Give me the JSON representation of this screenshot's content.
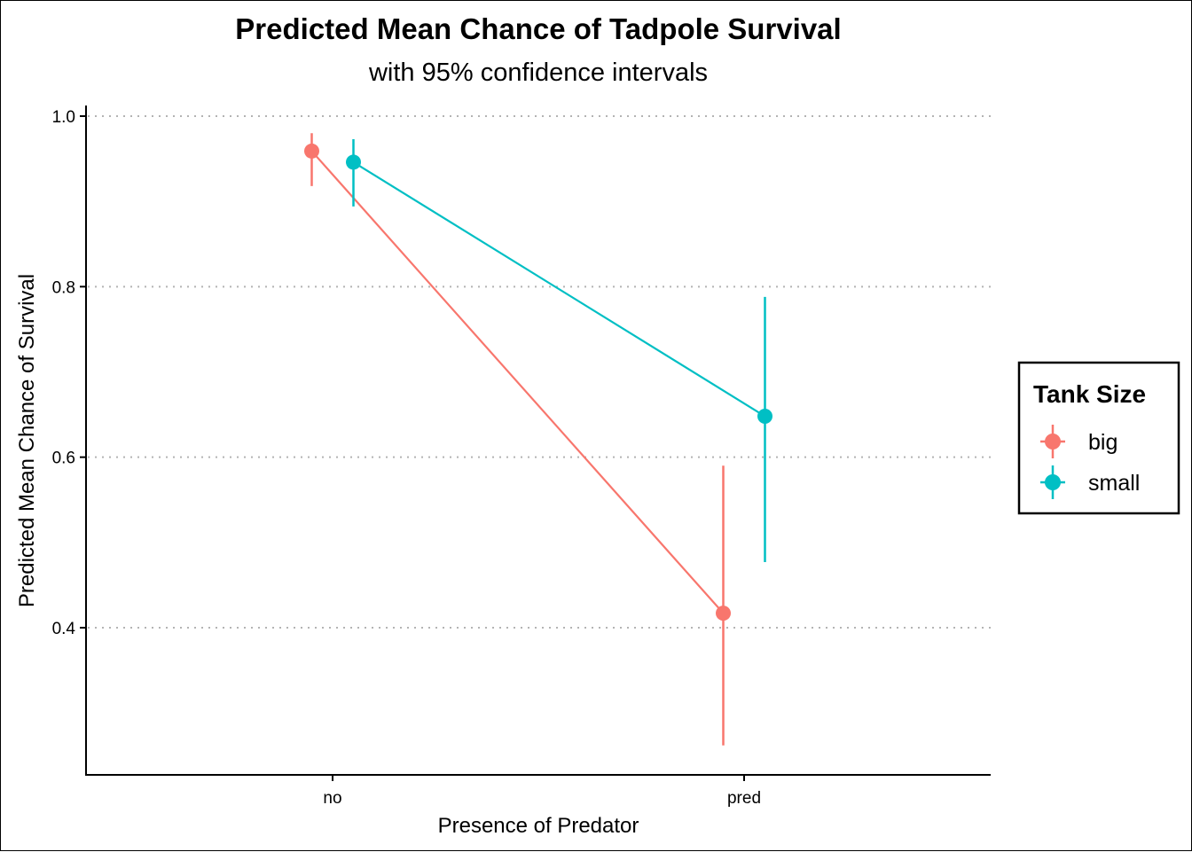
{
  "chart_data": {
    "type": "line",
    "title": "Predicted Mean Chance of Tadpole Survival",
    "subtitle": "with 95% confidence intervals",
    "xlabel": "Presence of Predator",
    "ylabel": "Predicted Mean Chance of Survival",
    "categories": [
      "no",
      "pred"
    ],
    "ylim": [
      0.225,
      1.0
    ],
    "yticks": [
      "0.4",
      "0.6",
      "0.8",
      "1.0"
    ],
    "ytick_values": [
      0.4,
      0.6,
      0.8,
      1.0
    ],
    "grid": "horizontal dotted",
    "legend": {
      "title": "Tank Size",
      "position": "right"
    },
    "series": [
      {
        "name": "big",
        "color": "#F8766D",
        "values": [
          0.959,
          0.417
        ],
        "lower": [
          0.918,
          0.262
        ],
        "upper": [
          0.98,
          0.59
        ]
      },
      {
        "name": "small",
        "color": "#00BFC4",
        "values": [
          0.946,
          0.648
        ],
        "lower": [
          0.894,
          0.477
        ],
        "upper": [
          0.973,
          0.788
        ]
      }
    ]
  }
}
